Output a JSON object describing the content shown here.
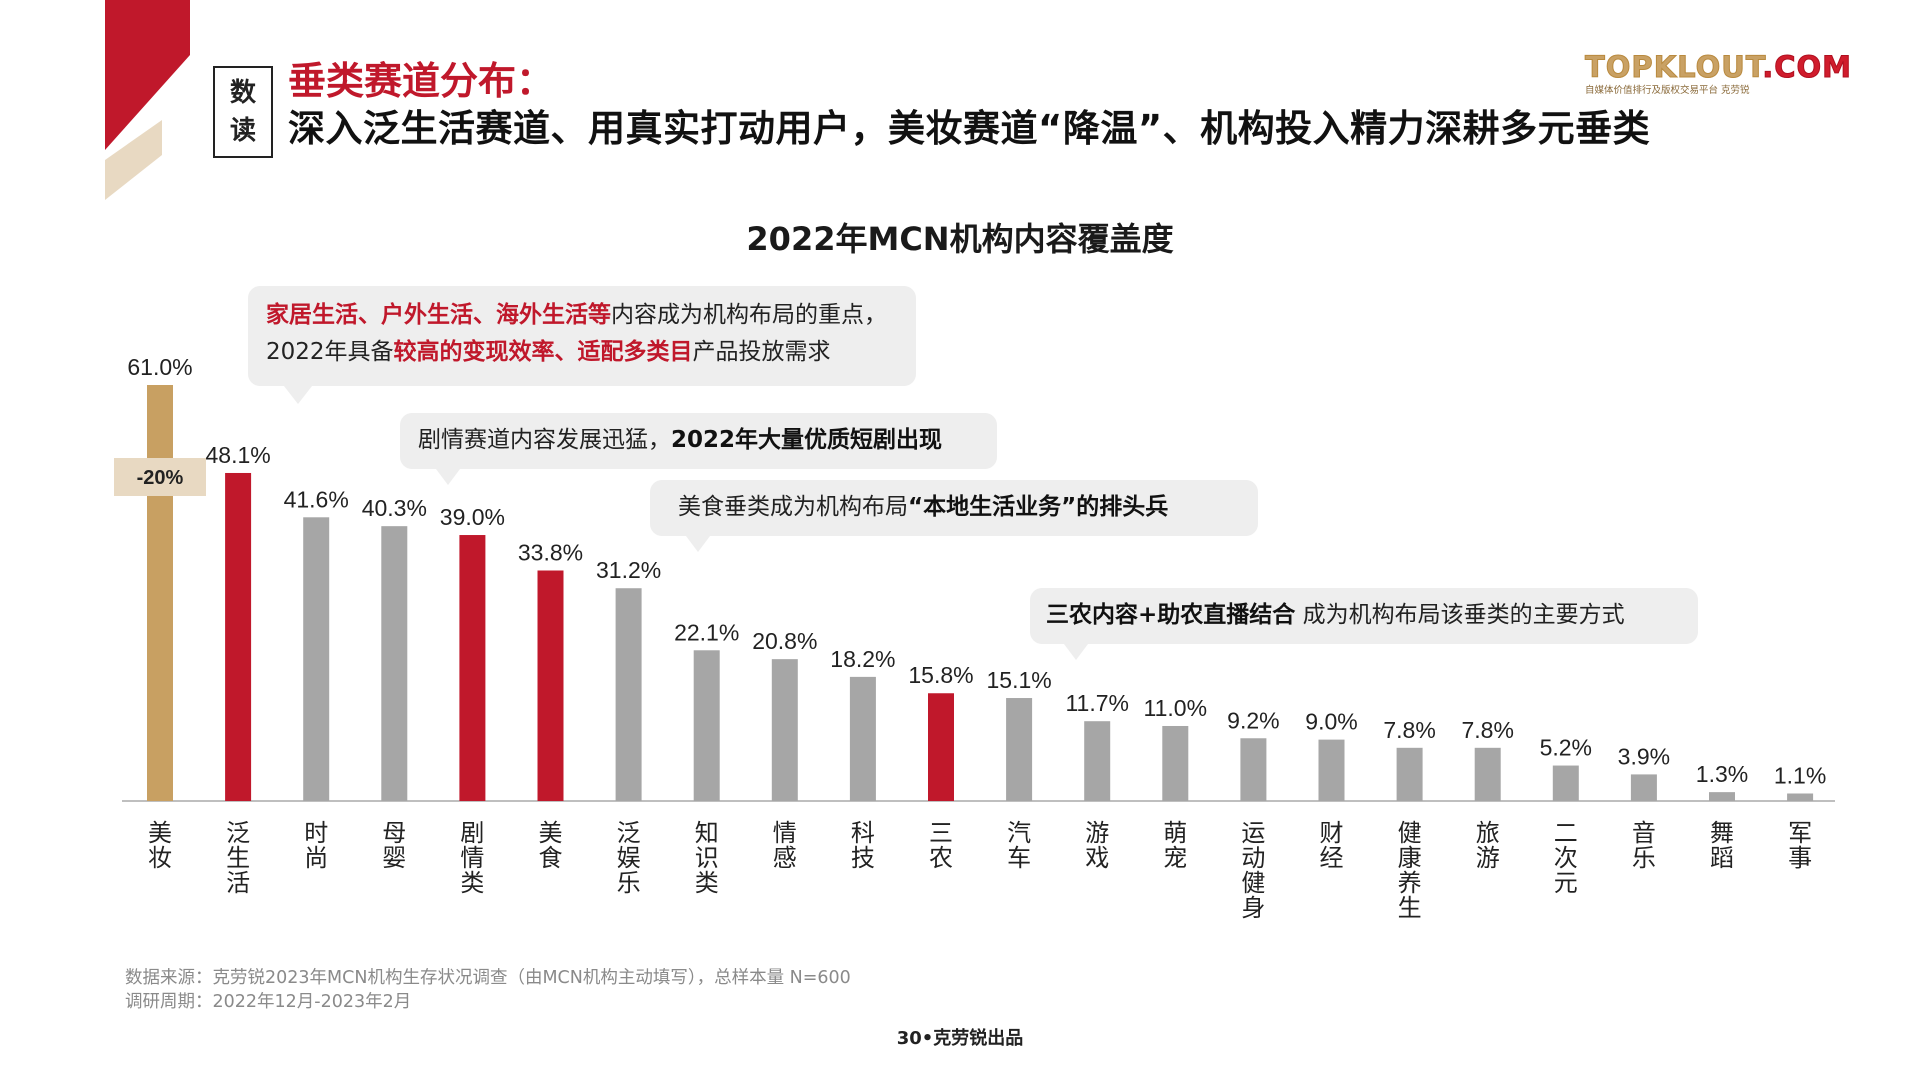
{
  "header": {
    "badge_line1": "数",
    "badge_line2": "读",
    "title": "垂类赛道分布：",
    "subtitle": "深入泛生活赛道、用真实打动用户，美妆赛道“降温”、机构投入精力深耕多元垂类"
  },
  "logo": {
    "wordmark_a": "TOPKLOUT",
    "wordmark_b": ".COM",
    "tagline": "自媒体价值排行及版权交易平台 克劳锐"
  },
  "colors": {
    "gold": "#c8a062",
    "red": "#c0182b",
    "gray": "#a6a6a6",
    "tan_label": "#e8d9c2",
    "accent_red": "#c0182b"
  },
  "chart_data": {
    "type": "bar",
    "title": "2022年MCN机构内容覆盖度",
    "categories": [
      "美妆",
      "泛生活",
      "时尚",
      "母婴",
      "剧情类",
      "美食",
      "泛娱乐",
      "知识类",
      "情感",
      "科技",
      "三农",
      "汽车",
      "游戏",
      "萌宠",
      "运动健身",
      "财经",
      "健康养生",
      "旅游",
      "二次元",
      "音乐",
      "舞蹈",
      "军事"
    ],
    "values": [
      61.0,
      48.1,
      41.6,
      40.3,
      39.0,
      33.8,
      31.2,
      22.1,
      20.8,
      18.2,
      15.8,
      15.1,
      11.7,
      11.0,
      9.2,
      9.0,
      7.8,
      7.8,
      5.2,
      3.9,
      1.3,
      1.1
    ],
    "value_labels": [
      "61.0%",
      "48.1%",
      "41.6%",
      "40.3%",
      "39.0%",
      "33.8%",
      "31.2%",
      "22.1%",
      "20.8%",
      "18.2%",
      "15.8%",
      "15.1%",
      "11.7%",
      "11.0%",
      "9.2%",
      "9.0%",
      "7.8%",
      "7.8%",
      "5.2%",
      "3.9%",
      "1.3%",
      "1.1%"
    ],
    "bar_colors": [
      "gold",
      "red",
      "gray",
      "gray",
      "red",
      "red",
      "gray",
      "gray",
      "gray",
      "gray",
      "red",
      "gray",
      "gray",
      "gray",
      "gray",
      "gray",
      "gray",
      "gray",
      "gray",
      "gray",
      "gray",
      "gray"
    ],
    "change_label": "-20%",
    "ylim": [
      0,
      61
    ],
    "grid": false
  },
  "callouts": {
    "c1_red1": "家居生活、户外生活、海外生活等",
    "c1_text1": "内容成为机构布局的重点，",
    "c1_text2": "2022年具备",
    "c1_red2": "较高的变现效率、适配多类目",
    "c1_text3": "产品投放需求",
    "c2_text": "剧情赛道内容发展迅猛，",
    "c2_bold": "2022年大量优质短剧出现",
    "c3_text": "美食垂类成为机构布局",
    "c3_bold": "“本地生活业务”的排头兵",
    "c4_bold": "三农内容+助农直播结合",
    "c4_text": " 成为机构布局该垂类的主要方式"
  },
  "footer": {
    "source_line1": "数据来源：克劳锐2023年MCN机构生存状况调查（由MCN机构主动填写），总样本量 N=600",
    "source_line2": "调研周期：2022年12月-2023年2月",
    "page": "30•克劳锐出品"
  }
}
